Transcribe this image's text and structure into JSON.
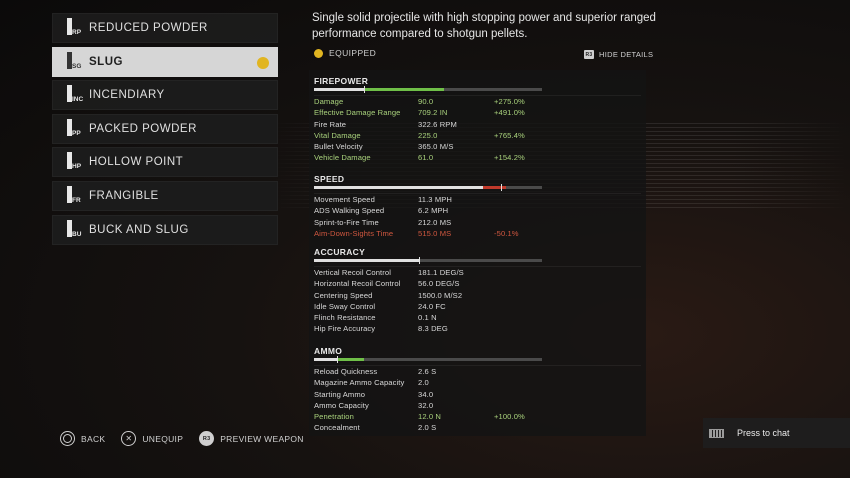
{
  "ammo_list": [
    {
      "abbr": "RP",
      "label": "REDUCED POWDER",
      "selected": false
    },
    {
      "abbr": "SG",
      "label": "SLUG",
      "selected": true
    },
    {
      "abbr": "INC",
      "label": "INCENDIARY",
      "selected": false
    },
    {
      "abbr": "PP",
      "label": "PACKED POWDER",
      "selected": false
    },
    {
      "abbr": "HP",
      "label": "HOLLOW POINT",
      "selected": false
    },
    {
      "abbr": "FR",
      "label": "FRANGIBLE",
      "selected": false
    },
    {
      "abbr": "BU",
      "label": "BUCK AND SLUG",
      "selected": false
    }
  ],
  "description": "Single solid projectile with high stopping power and superior ranged performance compared to shotgun pellets.",
  "equipped_label": "EQUIPPED",
  "hide_details": {
    "key": "R3",
    "label": "HIDE DETAILS"
  },
  "sections": [
    {
      "title": "FIREPOWER",
      "bar": {
        "base": 0.22,
        "gain": 0.35,
        "loss": 0,
        "marker": 0.22
      },
      "rows": [
        {
          "name": "Damage",
          "value": "90.0",
          "delta": "+275.0%",
          "tone": "pos"
        },
        {
          "name": "Effective Damage Range",
          "value": "709.2 IN",
          "delta": "+491.0%",
          "tone": "pos"
        },
        {
          "name": "Fire Rate",
          "value": "322.6 RPM",
          "delta": "",
          "tone": ""
        },
        {
          "name": "Vital Damage",
          "value": "225.0",
          "delta": "+765.4%",
          "tone": "pos"
        },
        {
          "name": "Bullet Velocity",
          "value": "365.0 M/S",
          "delta": "",
          "tone": ""
        },
        {
          "name": "Vehicle Damage",
          "value": "61.0",
          "delta": "+154.2%",
          "tone": "pos"
        }
      ]
    },
    {
      "title": "SPEED",
      "bar": {
        "base": 0.74,
        "gain": 0,
        "loss": 0.1,
        "marker": 0.82
      },
      "rows": [
        {
          "name": "Movement Speed",
          "value": "11.3 MPH",
          "delta": "",
          "tone": ""
        },
        {
          "name": "ADS Walking Speed",
          "value": "6.2 MPH",
          "delta": "",
          "tone": ""
        },
        {
          "name": "Sprint-to-Fire Time",
          "value": "212.0 MS",
          "delta": "",
          "tone": ""
        },
        {
          "name": "Aim-Down-Sights Time",
          "value": "515.0 MS",
          "delta": "-50.1%",
          "tone": "neg"
        }
      ]
    },
    {
      "title": "ACCURACY",
      "bar": {
        "base": 0.46,
        "gain": 0,
        "loss": 0,
        "marker": 0.46
      },
      "rows": [
        {
          "name": "Vertical Recoil Control",
          "value": "181.1 DEG/S",
          "delta": "",
          "tone": ""
        },
        {
          "name": "Horizontal Recoil Control",
          "value": "56.0 DEG/S",
          "delta": "",
          "tone": ""
        },
        {
          "name": "Centering Speed",
          "value": "1500.0 M/S2",
          "delta": "",
          "tone": ""
        },
        {
          "name": "Idle Sway Control",
          "value": "24.0 FC",
          "delta": "",
          "tone": ""
        },
        {
          "name": "Flinch Resistance",
          "value": "0.1 N",
          "delta": "",
          "tone": ""
        },
        {
          "name": "Hip Fire Accuracy",
          "value": "8.3 DEG",
          "delta": "",
          "tone": ""
        }
      ]
    },
    {
      "title": "AMMO",
      "bar": {
        "base": 0.1,
        "gain": 0.12,
        "loss": 0,
        "marker": 0.1
      },
      "rows": [
        {
          "name": "Reload Quickness",
          "value": "2.6 S",
          "delta": "",
          "tone": ""
        },
        {
          "name": "Magazine Ammo Capacity",
          "value": "2.0",
          "delta": "",
          "tone": ""
        },
        {
          "name": "Starting Ammo",
          "value": "34.0",
          "delta": "",
          "tone": ""
        },
        {
          "name": "Ammo Capacity",
          "value": "32.0",
          "delta": "",
          "tone": ""
        },
        {
          "name": "Penetration",
          "value": "12.0 N",
          "delta": "+100.0%",
          "tone": "pos"
        },
        {
          "name": "Concealment",
          "value": "2.0 S",
          "delta": "",
          "tone": ""
        }
      ]
    }
  ],
  "prompts": [
    {
      "icon": "circle-button-icon",
      "label": "BACK"
    },
    {
      "icon": "cross-button-icon",
      "label": "UNEQUIP"
    },
    {
      "icon": "r3-button-icon",
      "label": "PREVIEW WEAPON",
      "key": "R3"
    }
  ],
  "chat": {
    "label": "Press to chat",
    "icon": "keyboard-icon"
  },
  "colors": {
    "accent_yellow": "#e1b521",
    "positive": "#a9d27c",
    "negative": "#d0573f",
    "bar_gain": "#6fbf48",
    "bar_loss": "#c0392b"
  }
}
